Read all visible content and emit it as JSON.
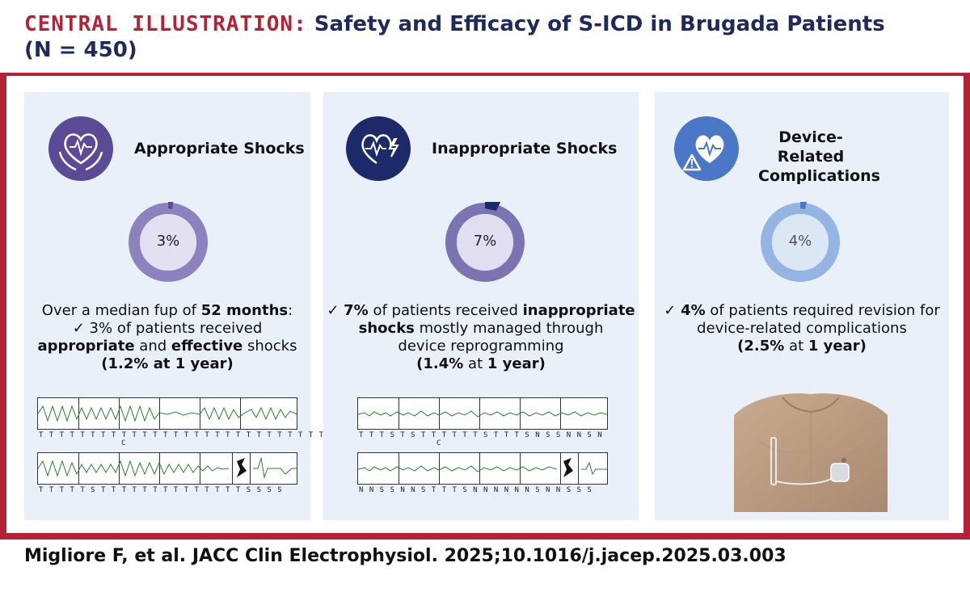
{
  "header": {
    "prefix": "CENTRAL ILLUSTRATION:",
    "title_line1": "Safety and Efficacy of S-ICD in Brugada Patients",
    "title_line2": "(N = 450)"
  },
  "panels": [
    {
      "heading": "Appropriate Shocks",
      "icon": "hands-heart-ecg-icon",
      "percent_label": "3%",
      "percent_value": 3,
      "color_dark": "#5b4a96",
      "color_mid": "#8c82bd",
      "color_light": "#c7c2e0",
      "text": {
        "l1a": "Over a median fup of ",
        "l1b": "52 months",
        "l1c": ":",
        "l2a": "✓ 3% of patients received",
        "l3a": "appropriate",
        "l3b": " and ",
        "l3c": "effective",
        "l3d": " shocks",
        "l4a": "(1.2% at ",
        "l4b": "1 year",
        "l4c": ")"
      },
      "ecg_markers_row1": "T T T T T T T T   T T T T T T T T   T T   T T T T T   T T T T T   T",
      "ecg_markers_row1_sub": "C",
      "ecg_markers_row2": "T T T   T     T   S T T T T T T T T T T T T T T S S         S     S"
    },
    {
      "heading": "Inappropriate Shocks",
      "icon": "heart-lightning-icon",
      "percent_label": "7%",
      "percent_value": 7,
      "color_dark": "#1d2a6a",
      "color_mid": "#7b73b2",
      "color_light": "#b9b4db",
      "text": {
        "l1a": "✓ ",
        "l1b": "7%",
        "l1c": " of patients received ",
        "l1d": "inappropriate",
        "l2a": "shocks",
        "l2b": " mostly managed through",
        "l3a": "device reprogramming",
        "l4a": "(",
        "l4b": "1.4%",
        "l4c": " at ",
        "l4d": "1 year",
        "l4e": ")"
      },
      "ecg_markers_row1": "T T   T S T   S T T T     T T T   S T   T T S N S   S   N   N S   N",
      "ecg_markers_row1_sub": "C",
      "ecg_markers_row2": "N N S S   N N S T   T T S   N N N   N N N S N N   S       S     S"
    },
    {
      "heading_line1": "Device-Related",
      "heading_line2": "Complications",
      "icon": "heart-warning-icon",
      "percent_label": "4%",
      "percent_value": 4,
      "color_dark": "#4a78c7",
      "color_mid": "#94b4e3",
      "color_light": "#c8d9f1",
      "text": {
        "l1a": "✓ ",
        "l1b": "4%",
        "l1c": " of patients required revision for",
        "l2a": "device-related complications",
        "l3a": "(",
        "l3b": "2.5%",
        "l3c": " at ",
        "l3d": "1 year",
        "l3e": ")"
      }
    }
  ],
  "footer": {
    "citation": "Migliore F, et al. JACC Clin Electrophysiol. 2025;10.1016/j.jacep.2025.03.003"
  }
}
